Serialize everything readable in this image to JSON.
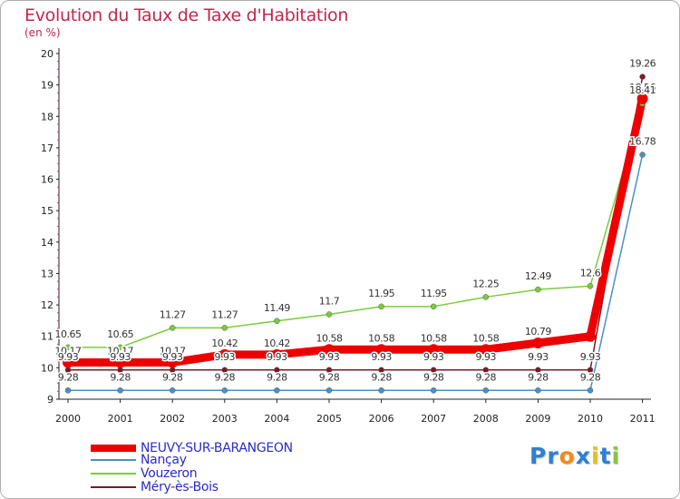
{
  "title": "Evolution du Taux de Taxe d'Habitation",
  "unit_label": "(en %)",
  "logo": {
    "letters": [
      "P",
      "r",
      "o",
      "x",
      "i",
      "t",
      "i"
    ],
    "colors": [
      "#2f80d0",
      "#2f80d0",
      "#f08a1c",
      "#2f80d0",
      "#e0c21a",
      "#2f80d0",
      "#8ac43f"
    ]
  },
  "chart_data": {
    "type": "line",
    "title": "Evolution du Taux de Taxe d'Habitation",
    "ylabel": "(en %)",
    "xlabel": "",
    "x": [
      "2000",
      "2001",
      "2002",
      "2003",
      "2004",
      "2005",
      "2006",
      "2007",
      "2008",
      "2009",
      "2010",
      "2011"
    ],
    "ylim": [
      9,
      20
    ],
    "yticks": [
      "9",
      "10",
      "11",
      "12",
      "13",
      "14",
      "15",
      "16",
      "17",
      "18",
      "19",
      "20"
    ],
    "grid": false,
    "legend_position": "bottom-left",
    "series": [
      {
        "name": "NEUVY-SUR-BARANGEON",
        "color": "#ee0000",
        "values": [
          10.17,
          10.17,
          10.17,
          10.42,
          10.42,
          10.58,
          10.58,
          10.58,
          10.58,
          10.79,
          11.0,
          18.56
        ],
        "labels": [
          "10.17",
          "10.17",
          "10.17",
          "10.42",
          "10.42",
          "10.58",
          "10.58",
          "10.58",
          "10.58",
          "10.79",
          "",
          "18.56"
        ]
      },
      {
        "name": "Nançay",
        "color": "#4a90c8",
        "values": [
          9.28,
          9.28,
          9.28,
          9.28,
          9.28,
          9.28,
          9.28,
          9.28,
          9.28,
          9.28,
          9.28,
          16.78
        ],
        "labels": [
          "9.28",
          "9.28",
          "9.28",
          "9.28",
          "9.28",
          "9.28",
          "9.28",
          "9.28",
          "9.28",
          "9.28",
          "9.28",
          "16.78"
        ]
      },
      {
        "name": "Vouzeron",
        "color": "#7acc3c",
        "values": [
          10.65,
          10.65,
          11.27,
          11.27,
          11.49,
          11.7,
          11.95,
          11.95,
          12.25,
          12.49,
          12.6,
          18.41
        ],
        "labels": [
          "10.65",
          "10.65",
          "11.27",
          "11.27",
          "11.49",
          "11.7",
          "11.95",
          "11.95",
          "12.25",
          "12.49",
          "12.6",
          "18.41"
        ]
      },
      {
        "name": "Méry-ès-Bois",
        "color": "#7a1a2a",
        "values": [
          9.93,
          9.93,
          9.93,
          9.93,
          9.93,
          9.93,
          9.93,
          9.93,
          9.93,
          9.93,
          9.93,
          19.26
        ],
        "labels": [
          "9.93",
          "9.93",
          "9.93",
          "9.93",
          "9.93",
          "9.93",
          "9.93",
          "9.93",
          "9.93",
          "9.93",
          "9.93",
          "19.26"
        ]
      }
    ]
  }
}
